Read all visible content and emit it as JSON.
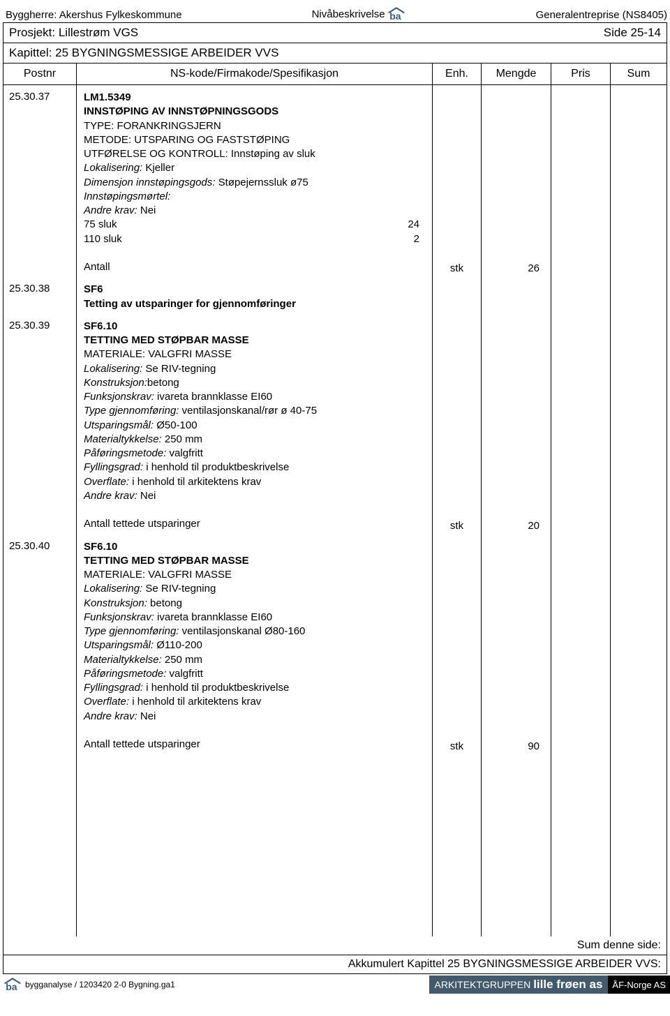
{
  "header": {
    "left": "Byggherre: Akershus Fylkeskommune",
    "center": "Nivåbeskrivelse",
    "right": "Generalentreprise (NS8405)"
  },
  "project": {
    "name": "Prosjekt: Lillestrøm VGS",
    "page": "Side 25-14"
  },
  "chapter": "Kapittel: 25 BYGNINGSMESSIGE ARBEIDER VVS",
  "columns": {
    "postnr": "Postnr",
    "spec": "NS-kode/Firmakode/Spesifikasjon",
    "enh": "Enh.",
    "mengde": "Mengde",
    "pris": "Pris",
    "sum": "Sum"
  },
  "items": [
    {
      "postnr": "25.30.37",
      "code": "LM1.5349",
      "title": "INNSTØPING AV INNSTØPNINGSGODS",
      "lines": [
        {
          "t": "TYPE: FORANKRINGSJERN"
        },
        {
          "t": "METODE: UTSPARING OG FASTSTØPING"
        },
        {
          "t": "UTFØRELSE OG KONTROLL: Innstøping av sluk"
        },
        {
          "t": "Lokalisering: Kjeller",
          "it": "Lokalisering:"
        },
        {
          "t": "Dimensjon innstøpingsgods: Støpejernssluk ø75",
          "it": "Dimensjon innstøpingsgods:"
        },
        {
          "t": "Innstøpingsmørtel:",
          "it": "Innstøpingsmørtel:"
        },
        {
          "t": "Andre krav: Nei",
          "it": "Andre krav:"
        },
        {
          "t": "75 sluk",
          "rhs": "24"
        },
        {
          "t": "110 sluk",
          "rhs": "2"
        }
      ],
      "total_label": "Antall",
      "enh": "stk",
      "mengde": "26"
    },
    {
      "postnr": "25.30.38",
      "code": "SF6",
      "title": "Tetting av utsparinger for gjennomføringer",
      "lines": [],
      "total_label": "",
      "enh": "",
      "mengde": ""
    },
    {
      "postnr": "25.30.39",
      "code": "SF6.10",
      "title": "TETTING MED STØPBAR MASSE",
      "lines": [
        {
          "t": "MATERIALE: VALGFRI MASSE"
        },
        {
          "t": "Lokalisering: Se RIV-tegning",
          "it": "Lokalisering:"
        },
        {
          "t": "Konstruksjon:betong",
          "it": "Konstruksjon:"
        },
        {
          "t": "Funksjonskrav: ivareta brannklasse EI60",
          "it": "Funksjonskrav:"
        },
        {
          "t": "Type gjennomføring: ventilasjonskanal/rør ø 40-75",
          "it": "Type gjennomføring:"
        },
        {
          "t": "Utsparingsmål: Ø50-100",
          "it": "Utsparingsmål:"
        },
        {
          "t": "Materialtykkelse: 250 mm",
          "it": "Materialtykkelse:"
        },
        {
          "t": "Påføringsmetode: valgfritt",
          "it": "Påføringsmetode:"
        },
        {
          "t": "Fyllingsgrad: i henhold til produktbeskrivelse",
          "it": "Fyllingsgrad:"
        },
        {
          "t": "Overflate: i henhold til arkitektens krav",
          "it": "Overflate:"
        },
        {
          "t": "Andre krav: Nei",
          "it": "Andre krav:"
        }
      ],
      "total_label": "Antall tettede utsparinger",
      "enh": "stk",
      "mengde": "20"
    },
    {
      "postnr": "25.30.40",
      "code": "SF6.10",
      "title": "TETTING MED STØPBAR MASSE",
      "lines": [
        {
          "t": "MATERIALE: VALGFRI MASSE"
        },
        {
          "t": "Lokalisering: Se RIV-tegning",
          "it": "Lokalisering:"
        },
        {
          "t": "Konstruksjon: betong",
          "it": "Konstruksjon:"
        },
        {
          "t": "Funksjonskrav: ivareta brannklasse EI60",
          "it": "Funksjonskrav:"
        },
        {
          "t": "Type gjennomføring: ventilasjonskanal Ø80-160",
          "it": "Type gjennomføring:"
        },
        {
          "t": "Utsparingsmål: Ø110-200",
          "it": "Utsparingsmål:"
        },
        {
          "t": "Materialtykkelse: 250 mm",
          "it": "Materialtykkelse:"
        },
        {
          "t": "Påføringsmetode: valgfritt",
          "it": "Påføringsmetode:"
        },
        {
          "t": "Fyllingsgrad: i henhold til produktbeskrivelse",
          "it": "Fyllingsgrad:"
        },
        {
          "t": "Overflate: i henhold til arkitektens krav",
          "it": "Overflate:"
        },
        {
          "t": "Andre krav: Nei",
          "it": "Andre krav:"
        }
      ],
      "total_label": "Antall tettede utsparinger",
      "enh": "stk",
      "mengde": "90"
    }
  ],
  "footer": {
    "sum_side": "Sum denne side:",
    "akk": "Akkumulert Kapittel 25 BYGNINGSMESSIGE ARBEIDER VVS:",
    "bottom_left": "bygganalyse / 1203420 2-0 Bygning.ga1",
    "ark_label": "ARKITEKTGRUPPEN",
    "ark_name": "lille frøen as",
    "af": "ÅF-Norge AS"
  },
  "style": {
    "border_color": "#000000",
    "ark_bg": "#425a6b",
    "af_bg": "#000000",
    "text_color": "#000000",
    "logo_color": "#3a5a7a"
  }
}
